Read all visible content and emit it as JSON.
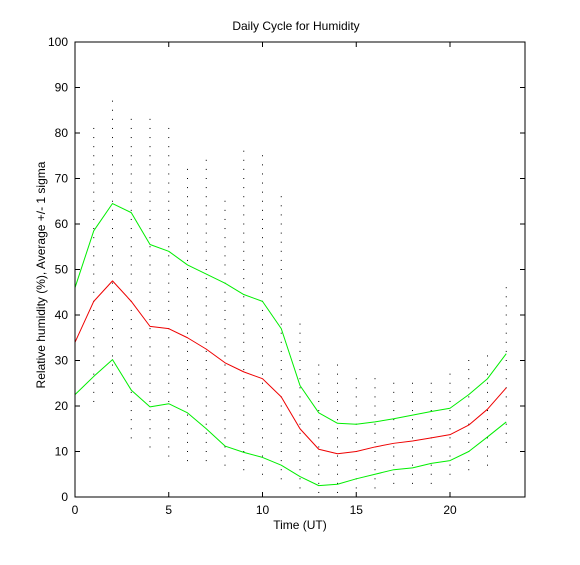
{
  "chart_data": {
    "type": "line",
    "title": "Daily Cycle for Humidity",
    "xlabel": "Time (UT)",
    "ylabel": "Relative humidity (%), Average +/- 1 sigma",
    "xlim": [
      0,
      24
    ],
    "ylim": [
      0,
      100
    ],
    "x_ticks": [
      0,
      5,
      10,
      15,
      20
    ],
    "y_ticks": [
      0,
      10,
      20,
      30,
      40,
      50,
      60,
      70,
      80,
      90,
      100
    ],
    "grid": false,
    "x": [
      0,
      1,
      2,
      3,
      4,
      5,
      6,
      7,
      8,
      9,
      10,
      11,
      12,
      13,
      14,
      15,
      16,
      17,
      18,
      19,
      20,
      21,
      22,
      23
    ],
    "series": [
      {
        "color": "#00ee00",
        "values": [
          46,
          58.5,
          64.5,
          62.5,
          55.5,
          54,
          51,
          49,
          47,
          44.5,
          43,
          37,
          24.5,
          18.5,
          16.2,
          16,
          16.5,
          17.2,
          18,
          18.8,
          19.5,
          22.5,
          26,
          31.5
        ]
      },
      {
        "color": "#ee0000",
        "values": [
          34,
          43,
          47.5,
          43,
          37.5,
          37,
          35,
          32.5,
          29.5,
          27.5,
          26,
          22,
          15,
          10.5,
          9.5,
          10,
          11,
          11.8,
          12.3,
          13,
          13.7,
          15.8,
          19.3,
          24
        ]
      },
      {
        "color": "#00ee00",
        "values": [
          22.5,
          26.5,
          30.2,
          23.5,
          19.8,
          20.5,
          18.5,
          15,
          11.2,
          9.8,
          8.7,
          7,
          4.5,
          2.5,
          2.8,
          4,
          5,
          6,
          6.4,
          7.4,
          8,
          10,
          13.2,
          16.5
        ]
      }
    ],
    "scatter_hours": [
      1,
      2,
      3,
      4,
      5,
      6,
      7,
      8,
      9,
      10,
      11,
      12,
      13,
      14,
      15,
      16,
      17,
      18,
      19,
      20,
      21,
      22,
      23
    ],
    "scatter_ranges": [
      [
        21,
        81
      ],
      [
        23,
        87
      ],
      [
        13,
        83
      ],
      [
        11,
        84
      ],
      [
        9,
        82
      ],
      [
        8,
        73
      ],
      [
        8,
        75
      ],
      [
        7,
        65
      ],
      [
        6,
        77
      ],
      [
        5,
        76
      ],
      [
        4,
        66
      ],
      [
        2,
        38
      ],
      [
        1,
        29
      ],
      [
        1,
        29
      ],
      [
        2,
        27
      ],
      [
        2,
        26
      ],
      [
        3,
        26
      ],
      [
        3,
        26
      ],
      [
        3,
        26
      ],
      [
        5,
        27
      ],
      [
        6,
        30
      ],
      [
        7,
        31
      ],
      [
        12,
        46
      ]
    ],
    "colors": {
      "axis": "#000000",
      "scatter": "#000000",
      "sigma": "#00ee00",
      "average": "#ee0000"
    }
  }
}
